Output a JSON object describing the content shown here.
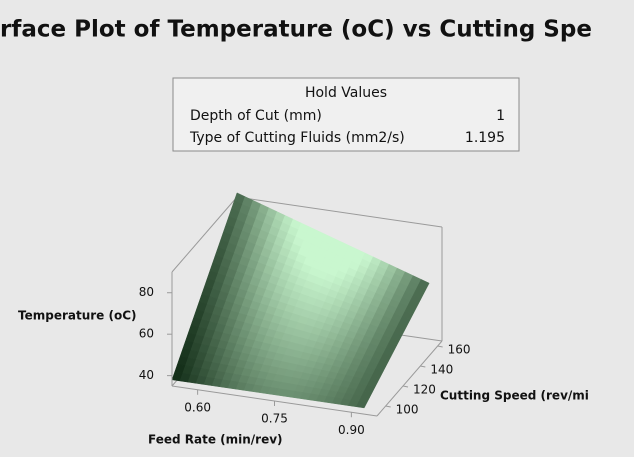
{
  "chart_data": {
    "type": "surface",
    "title": "rface Plot of Temperature (oC) vs Cutting Spe",
    "hold_values": {
      "title": "Hold Values",
      "rows": [
        {
          "label": "Depth of Cut (mm)",
          "value": 1
        },
        {
          "label": "Type of Cutting Fluids (mm2/s)",
          "value": 1.195
        }
      ]
    },
    "x_label": "Feed Rate (min/rev)",
    "y_label": "Cutting Speed (rev/mi",
    "z_label": "Temperature (oC)",
    "x": [
      0.55,
      0.925
    ],
    "y": [
      90,
      165
    ],
    "z": [
      [
        38,
        38
      ],
      [
        92,
        62
      ]
    ],
    "xlim": [
      0.55,
      0.95
    ],
    "ylim": [
      90,
      165
    ],
    "zlim": [
      35,
      90
    ],
    "xticks": [
      {
        "value": 0.6,
        "label": "0.60"
      },
      0.75,
      {
        "value": 0.9,
        "label": "0.90"
      }
    ],
    "yticks": [
      100,
      120,
      140,
      160
    ],
    "zticks": [
      40,
      60,
      80
    ],
    "color_low": "#15301a",
    "color_high": "#c9f7cf"
  }
}
